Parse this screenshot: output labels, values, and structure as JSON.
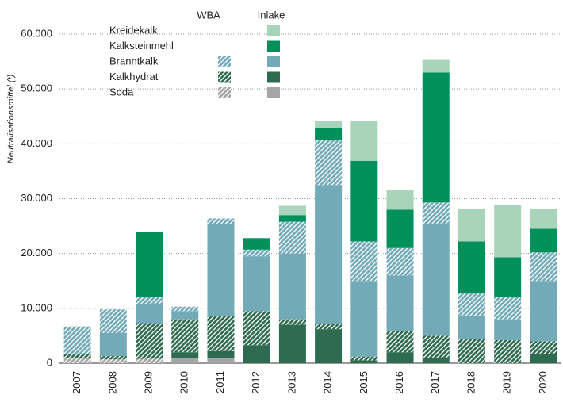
{
  "chart_data": {
    "type": "stacked_bar",
    "y_label": "Neutralisationsmittel (t)",
    "legend_columns": [
      "WBA",
      "Inlake"
    ],
    "categories": [
      "2007",
      "2008",
      "2009",
      "2010",
      "2011",
      "2012",
      "2013",
      "2014",
      "2015",
      "2016",
      "2017",
      "2018",
      "2019",
      "2020"
    ],
    "series": [
      {
        "name": "Soda",
        "group": "Inlake",
        "pattern": "solid",
        "color": "#a5a5a5",
        "values": [
          0,
          0,
          0,
          900,
          900,
          0,
          0,
          0,
          0,
          0,
          0,
          0,
          0,
          0
        ]
      },
      {
        "name": "Soda",
        "group": "WBA",
        "pattern": "hatched",
        "color": "#a5a5a5",
        "values": [
          1000,
          700,
          800,
          0,
          0,
          0,
          0,
          0,
          0,
          0,
          0,
          0,
          0,
          0
        ]
      },
      {
        "name": "Kalkhydrat",
        "group": "Inlake",
        "pattern": "solid",
        "color": "#2f6b50",
        "values": [
          0,
          0,
          0,
          1100,
          1300,
          3300,
          7000,
          6200,
          500,
          2000,
          1000,
          0,
          0,
          1600
        ]
      },
      {
        "name": "Kalkhydrat",
        "group": "WBA",
        "pattern": "hatched",
        "color": "#2f6b50",
        "values": [
          700,
          600,
          6500,
          6000,
          6400,
          6200,
          1000,
          900,
          700,
          3800,
          4000,
          4400,
          4200,
          2400
        ]
      },
      {
        "name": "Branntkalk",
        "group": "Inlake",
        "pattern": "solid",
        "color": "#72aab8",
        "values": [
          0,
          4200,
          3400,
          1500,
          16700,
          10000,
          12000,
          25400,
          13800,
          10200,
          20300,
          4300,
          3800,
          11000
        ]
      },
      {
        "name": "Branntkalk",
        "group": "WBA",
        "pattern": "hatched",
        "color": "#72aab8",
        "values": [
          5000,
          4300,
          1400,
          800,
          1100,
          1200,
          5800,
          8200,
          7200,
          5000,
          4000,
          4000,
          4000,
          5200
        ]
      },
      {
        "name": "Kalksteinmehl",
        "group": "Inlake",
        "pattern": "solid",
        "color": "#00905a",
        "values": [
          0,
          0,
          11800,
          0,
          0,
          2100,
          1200,
          2200,
          14700,
          7000,
          23700,
          9500,
          7300,
          4300
        ]
      },
      {
        "name": "Kreidekalk",
        "group": "Inlake",
        "pattern": "solid",
        "color": "#a8d5b9",
        "values": [
          0,
          0,
          0,
          0,
          0,
          0,
          1700,
          1200,
          7300,
          3600,
          2300,
          6000,
          9600,
          3700
        ]
      }
    ],
    "ylim": [
      0,
      60000
    ],
    "yticks": [
      0,
      {
        "value": 10000,
        "label": "10.000"
      },
      {
        "value": 20000,
        "label": "20.000"
      },
      {
        "value": 30000,
        "label": "30.000"
      },
      {
        "value": 40000,
        "label": "40.000"
      },
      {
        "value": 50000,
        "label": "50.000"
      },
      {
        "value": 60000,
        "label": "60.000"
      }
    ],
    "grid": true
  }
}
